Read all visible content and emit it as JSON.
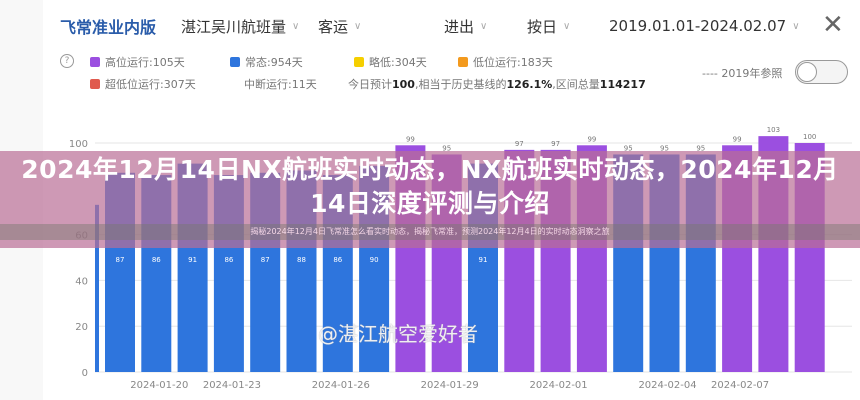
{
  "header": {
    "brand": "飞常准业内版",
    "filters": [
      {
        "label": "湛江吴川航班量"
      },
      {
        "label": "客运"
      },
      {
        "label": "进出"
      },
      {
        "label": "按日"
      },
      {
        "label": "2019.01.01-2024.02.07"
      }
    ],
    "close_icon": "close-icon"
  },
  "legend": {
    "items": [
      {
        "label": "高位运行:105天",
        "color": "#9b4fe0"
      },
      {
        "label": "常态:954天",
        "color": "#2e75dd"
      },
      {
        "label": "略低:304天",
        "color": "#f5cf00"
      },
      {
        "label": "低位运行:183天",
        "color": "#f39a1e"
      },
      {
        "label": "超低位运行:307天",
        "color": "#e05a4e"
      },
      {
        "label": "中断运行:11天"
      }
    ],
    "summary": {
      "p1": "今日预计",
      "v1": "100",
      "p2": ",相当于历史基线的",
      "v2": "126.1%",
      "p3": ",区间总量",
      "v3": "114217"
    },
    "reference_label": "---- 2019年参照",
    "reference_toggle_on": false
  },
  "chart_data": {
    "type": "bar",
    "yticks": [
      0,
      20,
      40,
      60,
      100
    ],
    "ylim": [
      0,
      100
    ],
    "grid": true,
    "xtick_labels": [
      "2024-01-20",
      "2024-01-23",
      "2024-01-26",
      "2024-01-29",
      "2024-02-01",
      "2024-02-04",
      "2024-02-07"
    ],
    "values": [
      73,
      87,
      86,
      91,
      86,
      87,
      88,
      86,
      90,
      99,
      95,
      91,
      97,
      97,
      99,
      95,
      95,
      95,
      99,
      103,
      100
    ],
    "colors": [
      "#2e75dd",
      "#2e75dd",
      "#2e75dd",
      "#2e75dd",
      "#2e75dd",
      "#2e75dd",
      "#2e75dd",
      "#2e75dd",
      "#2e75dd",
      "#9b4fe0",
      "#9b4fe0",
      "#2e75dd",
      "#9b4fe0",
      "#9b4fe0",
      "#9b4fe0",
      "#2e75dd",
      "#2e75dd",
      "#2e75dd",
      "#9b4fe0",
      "#9b4fe0",
      "#9b4fe0"
    ]
  },
  "overlay": {
    "title": "2024年12月14日NX航班实时动态，NX航班实时动态，2024年12月14日深度评测与介绍",
    "subtitle": "揭秘2024年12月4日飞常准怎么看实时动态，揭秘飞常准，预测2024年12月4日的实时动态洞察之旅"
  },
  "watermark": "@湛江航空爱好者"
}
